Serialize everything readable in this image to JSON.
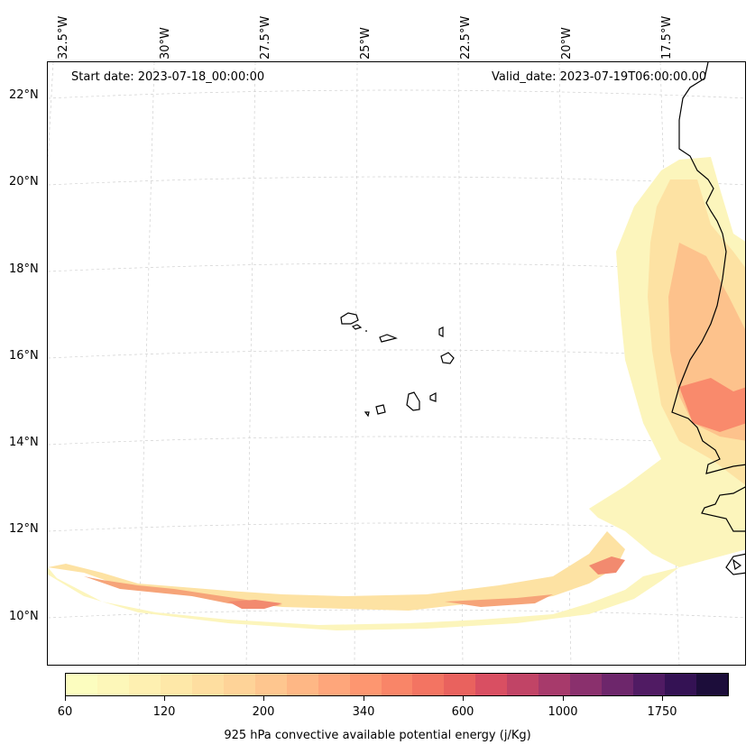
{
  "map": {
    "start_date": "Start date: 2023-07-18_00:00:00",
    "valid_date": "Valid_date: 2023-07-19T06:00:00.00",
    "lon_ticks": [
      "32.5°W",
      "30°W",
      "27.5°W",
      "25°W",
      "22.5°W",
      "20°W",
      "17.5°W"
    ],
    "lat_ticks": [
      "22°N",
      "20°N",
      "18°N",
      "16°N",
      "14°N",
      "12°N",
      "10°N"
    ],
    "gridlines": true,
    "coastline_color": "#000000",
    "field_colormap": "magma_r"
  },
  "colorbar": {
    "title": "925 hPa convective available potential energy (j/Kg)",
    "tick_labels": [
      "60",
      "120",
      "200",
      "340",
      "600",
      "1000",
      "1750"
    ],
    "colors": [
      "#fcfdbf",
      "#fdf7b9",
      "#fef0b1",
      "#fee8a8",
      "#fedea0",
      "#fed398",
      "#fec68f",
      "#feb785",
      "#fea67b",
      "#fd9670",
      "#f98568",
      "#f37462",
      "#e9625e",
      "#d94f62",
      "#c14466",
      "#a73a6b",
      "#8a306d",
      "#6d266b",
      "#501b63",
      "#341254",
      "#1c0d3a"
    ]
  }
}
